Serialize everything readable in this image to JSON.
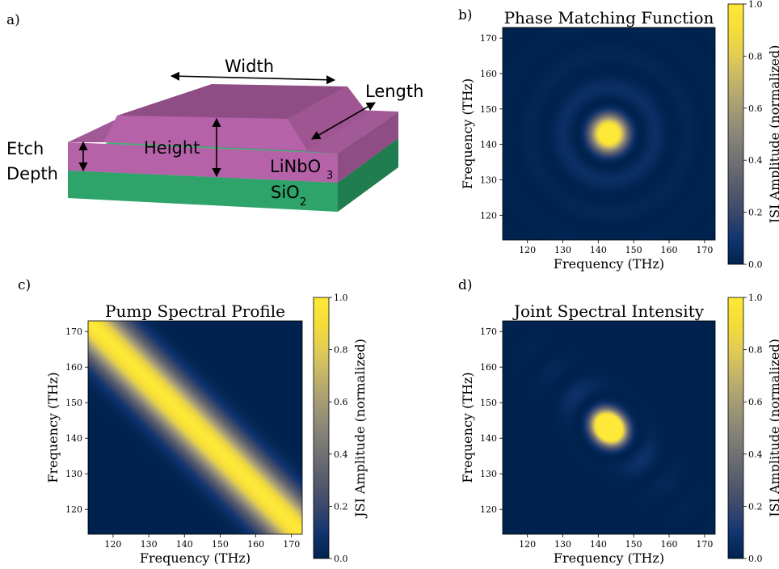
{
  "panel_labels": [
    "a)",
    "b)",
    "c)",
    "d)"
  ],
  "diagram": {
    "width_label": "Width",
    "length_label": "Length",
    "height_label": "Height",
    "etch_label_line1": "Etch",
    "etch_label_line2": "Depth",
    "linbo3_main": "LiNbO",
    "linbo3_sub": "3",
    "sio2_main": "SiO",
    "sio2_sub": "2",
    "colors": {
      "linbo3": "#b662a8",
      "linbo3_dark": "#8f4d85",
      "sio2": "#2ea36a",
      "sio2_dark": "#1f7d4f"
    }
  },
  "colormap": {
    "name": "cividis",
    "low": "#0b2353",
    "high": "#fde838"
  },
  "chart_data": [
    {
      "id": "b",
      "type": "heatmap",
      "title": "Phase Matching Function",
      "xlabel": "Frequency (THz)",
      "ylabel": "Frequency (THz)",
      "xlim": [
        113,
        173
      ],
      "ylim": [
        113,
        173
      ],
      "xticks": [
        120,
        130,
        140,
        150,
        160,
        170
      ],
      "yticks": [
        120,
        130,
        140,
        150,
        160,
        170
      ],
      "colorbar": {
        "label": "JSI Amplitude (normalized)",
        "ticks": [
          0.0,
          0.2,
          0.4,
          0.6,
          0.8,
          1.0
        ],
        "range": [
          0,
          1
        ]
      },
      "feature": {
        "shape": "circular sinc-squared lobe with faint concentric side rings",
        "center": [
          143,
          143
        ],
        "peak": 1.0
      }
    },
    {
      "id": "c",
      "type": "heatmap",
      "title": "Pump Spectral Profile",
      "xlabel": "Frequency (THz)",
      "ylabel": "Frequency (THz)",
      "xlim": [
        113,
        173
      ],
      "ylim": [
        113,
        173
      ],
      "xticks": [
        120,
        130,
        140,
        150,
        160,
        170
      ],
      "yticks": [
        120,
        130,
        140,
        150,
        160,
        170
      ],
      "colorbar": {
        "label": "JSI Amplitude (normalized)",
        "ticks": [
          0.0,
          0.2,
          0.4,
          0.6,
          0.8,
          1.0
        ],
        "range": [
          0,
          1
        ]
      },
      "feature": {
        "shape": "gaussian anti-diagonal band",
        "sum_frequency": 286,
        "peak": 1.0
      }
    },
    {
      "id": "d",
      "type": "heatmap",
      "title": "Joint Spectral Intensity",
      "xlabel": "Frequency (THz)",
      "ylabel": "Frequency (THz)",
      "xlim": [
        113,
        173
      ],
      "ylim": [
        113,
        173
      ],
      "xticks": [
        120,
        130,
        140,
        150,
        160,
        170
      ],
      "yticks": [
        120,
        130,
        140,
        150,
        160,
        170
      ],
      "colorbar": {
        "label": "JSI Amplitude (normalized)",
        "ticks": [
          0.0,
          0.2,
          0.4,
          0.6,
          0.8,
          1.0
        ],
        "range": [
          0,
          1
        ]
      },
      "feature": {
        "shape": "elliptical lobe elongated along anti-diagonal with faint side lobes",
        "center": [
          143,
          143
        ],
        "peak": 1.0
      }
    }
  ]
}
